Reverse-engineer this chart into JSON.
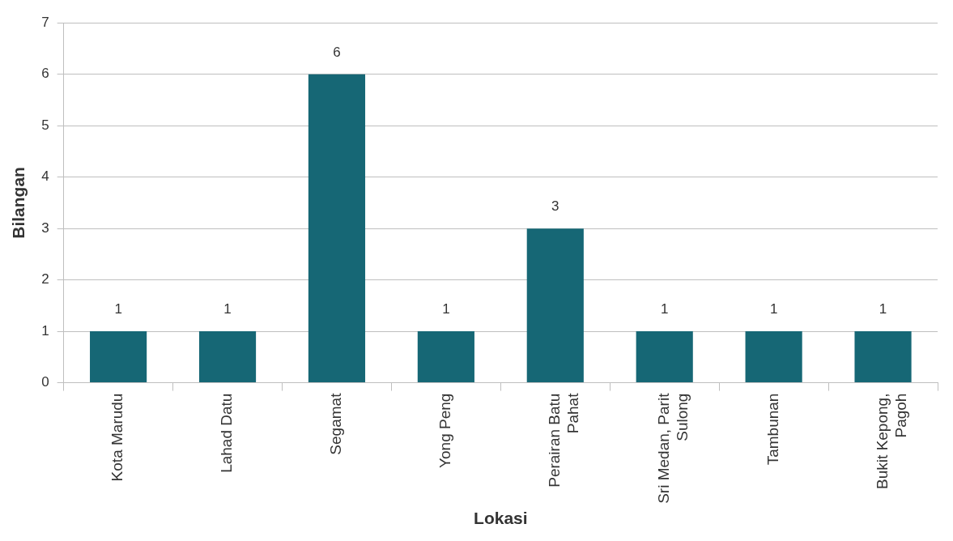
{
  "chart_data": {
    "type": "bar",
    "xlabel": "Lokasi",
    "ylabel": "Bilangan",
    "categories": [
      "Kota Marudu",
      "Lahad Datu",
      "Segamat",
      "Yong Peng",
      "Perairan Batu Pahat",
      "Sri Medan, Parit Sulong",
      "Tambunan",
      "Bukit Kepong, Pagoh"
    ],
    "values": [
      1,
      1,
      6,
      1,
      3,
      1,
      1,
      1
    ],
    "color": "#166775",
    "ylim": [
      0,
      7
    ],
    "yticks": [
      0,
      1,
      2,
      3,
      4,
      5,
      6,
      7
    ],
    "grid": "y",
    "data_labels": true,
    "legend": false
  }
}
